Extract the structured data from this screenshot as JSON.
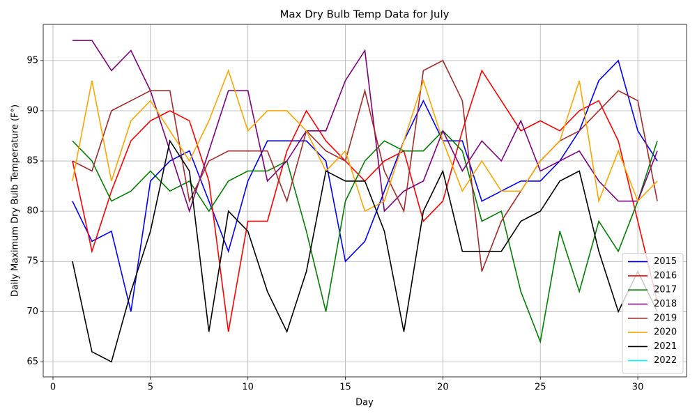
{
  "chart_data": {
    "type": "line",
    "title": "Max Dry Bulb Temp Data for July",
    "xlabel": "Day",
    "ylabel": "Daily Maximum Dry Bulb Temperature (F°)",
    "x": [
      1,
      2,
      3,
      4,
      5,
      6,
      7,
      8,
      9,
      10,
      11,
      12,
      13,
      14,
      15,
      16,
      17,
      18,
      19,
      20,
      21,
      22,
      23,
      24,
      25,
      26,
      27,
      28,
      29,
      30,
      31
    ],
    "series": [
      {
        "name": "2015",
        "color": "#0000ff",
        "values": [
          81,
          77,
          78,
          70,
          83,
          85,
          86,
          81,
          76,
          83,
          87,
          87,
          87,
          85,
          75,
          77,
          82,
          87,
          91,
          87,
          87,
          81,
          82,
          83,
          83,
          85,
          88,
          93,
          95,
          88,
          85
        ]
      },
      {
        "name": "2016",
        "color": "#ff0000",
        "values": [
          85,
          76,
          82,
          87,
          89,
          90,
          89,
          83,
          68,
          79,
          79,
          86,
          90,
          87,
          85,
          83,
          85,
          86,
          79,
          81,
          88,
          94,
          91,
          88,
          89,
          88,
          90,
          91,
          87,
          79,
          71
        ]
      },
      {
        "name": "2017",
        "color": "#008000",
        "values": [
          87,
          85,
          81,
          82,
          84,
          82,
          83,
          80,
          83,
          84,
          84,
          85,
          78,
          70,
          81,
          85,
          87,
          86,
          86,
          88,
          86,
          79,
          80,
          72,
          67,
          78,
          72,
          79,
          76,
          81,
          87
        ]
      },
      {
        "name": "2018",
        "color": "#800080",
        "values": [
          97,
          97,
          94,
          96,
          92,
          86,
          80,
          86,
          92,
          92,
          83,
          85,
          88,
          88,
          93,
          96,
          80,
          82,
          83,
          88,
          84,
          87,
          85,
          89,
          84,
          85,
          86,
          83,
          81,
          81,
          86
        ]
      },
      {
        "name": "2019",
        "color": "#a52a2a",
        "values": [
          85,
          84,
          90,
          91,
          92,
          92,
          81,
          85,
          86,
          86,
          86,
          81,
          88,
          86,
          85,
          92,
          84,
          80,
          94,
          95,
          91,
          74,
          79,
          82,
          85,
          87,
          88,
          90,
          92,
          91,
          81
        ]
      },
      {
        "name": "2020",
        "color": "#ffa500",
        "values": [
          83,
          93,
          83,
          89,
          91,
          88,
          85,
          89,
          94,
          88,
          90,
          90,
          88,
          84,
          86,
          80,
          81,
          87,
          93,
          87,
          82,
          85,
          82,
          82,
          85,
          87,
          93,
          81,
          86,
          81,
          83
        ]
      },
      {
        "name": "2021",
        "color": "#000000",
        "values": [
          75,
          66,
          65,
          72,
          78,
          87,
          84,
          68,
          80,
          78,
          72,
          68,
          74,
          84,
          83,
          83,
          78,
          68,
          80,
          84,
          76,
          76,
          76,
          79,
          80,
          83,
          84,
          76,
          70,
          74,
          70
        ]
      },
      {
        "name": "2022",
        "color": "#00ffff",
        "values": [
          null,
          null,
          null,
          null,
          null,
          null,
          null,
          null,
          null,
          null,
          null,
          null,
          null,
          null,
          null,
          null,
          null,
          null,
          null,
          null,
          null,
          null,
          null,
          null,
          null,
          null,
          null,
          null,
          null,
          null,
          null
        ]
      }
    ],
    "xlim": [
      -0.5,
      32.5
    ],
    "ylim": [
      63.5,
      98.6
    ],
    "xticks": [
      0,
      5,
      10,
      15,
      20,
      25,
      30
    ],
    "yticks": [
      65,
      70,
      75,
      80,
      85,
      90,
      95
    ],
    "grid": true,
    "legend": "lower right"
  }
}
